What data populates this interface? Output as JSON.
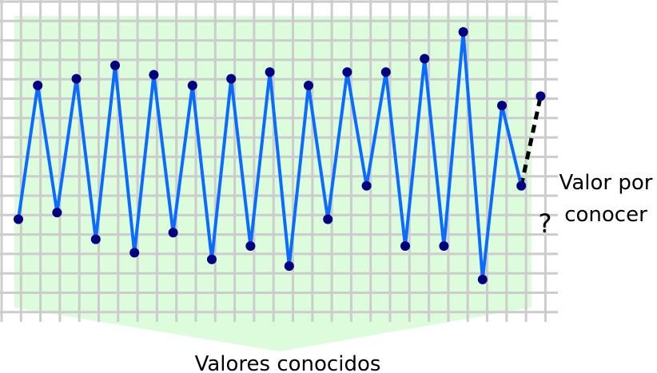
{
  "labels": {
    "known": "Valores conocidos",
    "unknown_line1": "Valor por",
    "unknown_line2": "conocer",
    "question_mark": "?"
  },
  "colors": {
    "known_region": "#dcfcdc",
    "grid": "#cccccc",
    "series_line": "#0a6cff",
    "point": "#000080",
    "prediction_line": "#000000"
  },
  "chart_data": {
    "type": "line",
    "title": "",
    "xlabel": "",
    "ylabel": "",
    "grid": true,
    "known_values": [
      6,
      16,
      6.5,
      16.5,
      4.5,
      17.5,
      3.5,
      16.8,
      5,
      16,
      3,
      16.5,
      4,
      17,
      2.5,
      16,
      6,
      17,
      8.5,
      17,
      4,
      18,
      4,
      20,
      1.5,
      14.5,
      8.5
    ],
    "unknown_value": 15.2
  }
}
